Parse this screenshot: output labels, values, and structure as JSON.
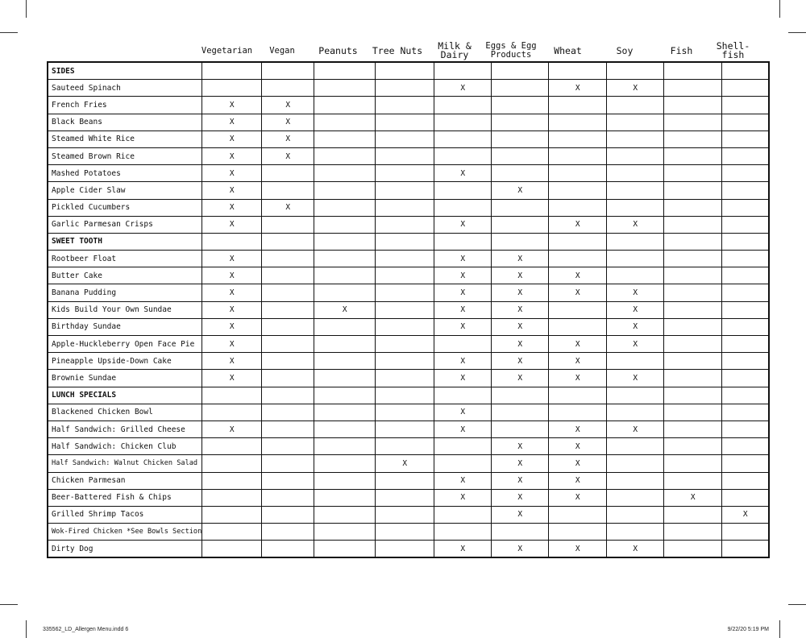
{
  "columns": [
    "Vegetarian",
    "Vegan",
    "Peanuts",
    "Tree Nuts",
    "Milk & Dairy",
    "Eggs & Egg Products",
    "Wheat",
    "Soy",
    "Fish",
    "Shell-fish"
  ],
  "rows": [
    {
      "name": "SIDES",
      "section": true,
      "marks": [
        "",
        "",
        "",
        "",
        "",
        "",
        "",
        "",
        "",
        ""
      ]
    },
    {
      "name": "Sauteed Spinach",
      "marks": [
        "",
        "",
        "",
        "",
        "X",
        "",
        "X",
        "X",
        "",
        ""
      ]
    },
    {
      "name": "French Fries",
      "marks": [
        "X",
        "X",
        "",
        "",
        "",
        "",
        "",
        "",
        "",
        ""
      ]
    },
    {
      "name": "Black Beans",
      "marks": [
        "X",
        "X",
        "",
        "",
        "",
        "",
        "",
        "",
        "",
        ""
      ]
    },
    {
      "name": "Steamed White Rice",
      "marks": [
        "X",
        "X",
        "",
        "",
        "",
        "",
        "",
        "",
        "",
        ""
      ]
    },
    {
      "name": "Steamed Brown Rice",
      "marks": [
        "X",
        "X",
        "",
        "",
        "",
        "",
        "",
        "",
        "",
        ""
      ]
    },
    {
      "name": "Mashed Potatoes",
      "marks": [
        "X",
        "",
        "",
        "",
        "X",
        "",
        "",
        "",
        "",
        ""
      ]
    },
    {
      "name": "Apple Cider Slaw",
      "marks": [
        "X",
        "",
        "",
        "",
        "",
        "X",
        "",
        "",
        "",
        ""
      ]
    },
    {
      "name": "Pickled Cucumbers",
      "marks": [
        "X",
        "X",
        "",
        "",
        "",
        "",
        "",
        "",
        "",
        ""
      ]
    },
    {
      "name": "Garlic Parmesan Crisps",
      "marks": [
        "X",
        "",
        "",
        "",
        "X",
        "",
        "X",
        "X",
        "",
        ""
      ]
    },
    {
      "name": "SWEET TOOTH",
      "section": true,
      "marks": [
        "",
        "",
        "",
        "",
        "",
        "",
        "",
        "",
        "",
        ""
      ]
    },
    {
      "name": "Rootbeer Float",
      "marks": [
        "X",
        "",
        "",
        "",
        "X",
        "X",
        "",
        "",
        "",
        ""
      ]
    },
    {
      "name": "Butter Cake",
      "marks": [
        "X",
        "",
        "",
        "",
        "X",
        "X",
        "X",
        "",
        "",
        ""
      ]
    },
    {
      "name": "Banana Pudding",
      "marks": [
        "X",
        "",
        "",
        "",
        "X",
        "X",
        "X",
        "X",
        "",
        ""
      ]
    },
    {
      "name": "Kids Build Your Own Sundae",
      "marks": [
        "X",
        "",
        "X",
        "",
        "X",
        "X",
        "",
        "X",
        "",
        ""
      ]
    },
    {
      "name": "Birthday Sundae",
      "marks": [
        "X",
        "",
        "",
        "",
        "X",
        "X",
        "",
        "X",
        "",
        ""
      ]
    },
    {
      "name": "Apple-Huckleberry Open Face Pie",
      "marks": [
        "X",
        "",
        "",
        "",
        "",
        "X",
        "X",
        "X",
        "",
        ""
      ]
    },
    {
      "name": "Pineapple Upside-Down Cake",
      "marks": [
        "X",
        "",
        "",
        "",
        "X",
        "X",
        "X",
        "",
        "",
        ""
      ]
    },
    {
      "name": "Brownie Sundae",
      "marks": [
        "X",
        "",
        "",
        "",
        "X",
        "X",
        "X",
        "X",
        "",
        ""
      ]
    },
    {
      "name": "LUNCH SPECIALS",
      "section": true,
      "marks": [
        "",
        "",
        "",
        "",
        "",
        "",
        "",
        "",
        "",
        ""
      ]
    },
    {
      "name": "Blackened Chicken Bowl",
      "marks": [
        "",
        "",
        "",
        "",
        "X",
        "",
        "",
        "",
        "",
        ""
      ]
    },
    {
      "name": "Half Sandwich: Grilled Cheese",
      "marks": [
        "X",
        "",
        "",
        "",
        "X",
        "",
        "X",
        "X",
        "",
        ""
      ]
    },
    {
      "name": "Half Sandwich: Chicken Club",
      "marks": [
        "",
        "",
        "",
        "",
        "",
        "X",
        "X",
        "",
        "",
        ""
      ]
    },
    {
      "name": "Half Sandwich: Walnut Chicken Salad",
      "small": true,
      "marks": [
        "",
        "",
        "",
        "X",
        "",
        "X",
        "X",
        "",
        "",
        ""
      ]
    },
    {
      "name": "Chicken Parmesan",
      "marks": [
        "",
        "",
        "",
        "",
        "X",
        "X",
        "X",
        "",
        "",
        ""
      ]
    },
    {
      "name": "Beer-Battered Fish & Chips",
      "marks": [
        "",
        "",
        "",
        "",
        "X",
        "X",
        "X",
        "",
        "X",
        ""
      ]
    },
    {
      "name": "Grilled Shrimp Tacos",
      "marks": [
        "",
        "",
        "",
        "",
        "",
        "X",
        "",
        "",
        "",
        "X"
      ]
    },
    {
      "name": "Wok-Fired Chicken *See Bowls Section",
      "small": true,
      "marks": [
        "",
        "",
        "",
        "",
        "",
        "",
        "",
        "",
        "",
        ""
      ]
    },
    {
      "name": "Dirty Dog",
      "marks": [
        "",
        "",
        "",
        "",
        "X",
        "X",
        "X",
        "X",
        "",
        ""
      ]
    }
  ],
  "footer": {
    "file": "335562_LD_Allergen Menu.indd   6",
    "date": "9/22/20   5:19 PM"
  }
}
